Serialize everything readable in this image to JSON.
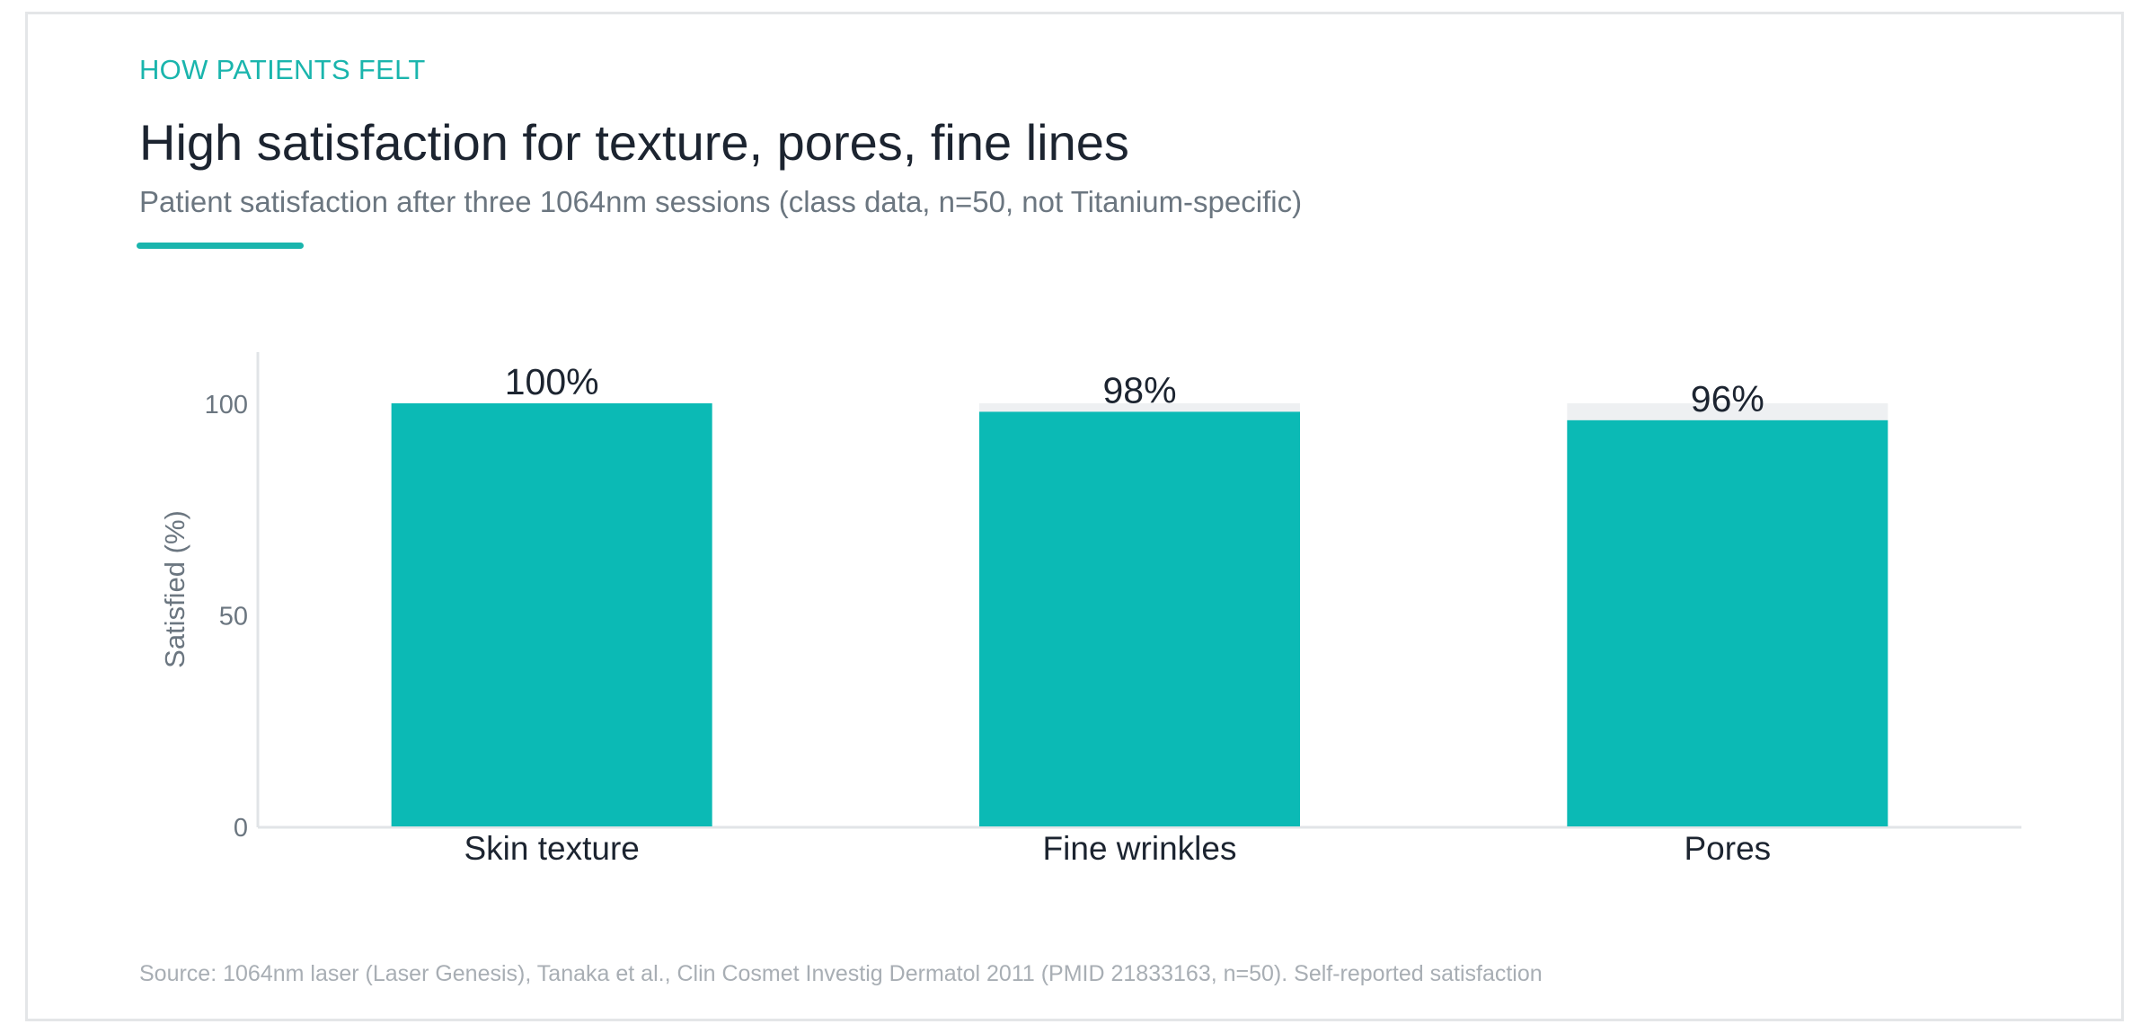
{
  "header": {
    "eyebrow": "HOW PATIENTS FELT",
    "title": "High satisfaction for texture, pores, fine lines",
    "subtitle": "Patient satisfaction after three 1064nm sessions (class data, n=50, not Titanium-specific)"
  },
  "footer": {
    "source": "Source: 1064nm laser (Laser Genesis), Tanaka et al., Clin Cosmet Investig Dermatol 2011 (PMID 21833163, n=50). Self-reported satisfaction"
  },
  "colors": {
    "accent": "#0bbab5",
    "track": "#eef0f2",
    "axis": "#e1e4e7",
    "tick_text": "#6b7680",
    "label_text": "#1c2430"
  },
  "chart_data": {
    "type": "bar",
    "title": "High satisfaction for texture, pores, fine lines",
    "xlabel": "",
    "ylabel": "Satisfied (%)",
    "ylim": [
      0,
      100
    ],
    "yticks": [
      0,
      50,
      100
    ],
    "grid": false,
    "categories": [
      "Skin texture",
      "Fine wrinkles",
      "Pores"
    ],
    "values": [
      100,
      98,
      96
    ],
    "value_labels": [
      "100%",
      "98%",
      "96%"
    ],
    "background_track_max": 100
  }
}
